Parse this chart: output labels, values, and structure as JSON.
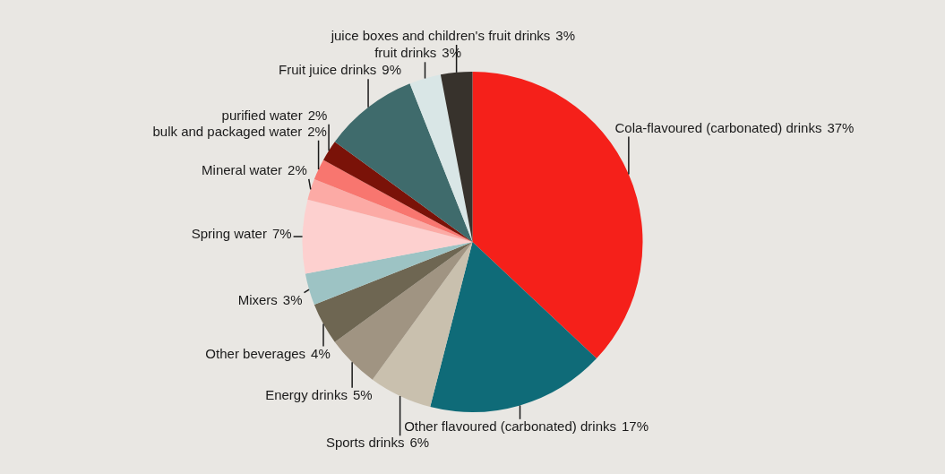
{
  "chart_data": {
    "type": "pie",
    "categories": [
      "Cola-flavoured (carbonated) drinks",
      "Other flavoured (carbonated) drinks",
      "Sports drinks",
      "Energy drinks",
      "Other beverages",
      "Mixers",
      "Spring water",
      "Mineral water",
      "bulk and packaged water",
      "purified water",
      "Fruit juice drinks",
      "fruit drinks",
      "juice boxes and children's fruit drinks"
    ],
    "values": [
      37,
      17,
      6,
      5,
      4,
      3,
      7,
      2,
      2,
      2,
      9,
      3,
      3
    ],
    "colors": [
      "#f5201a",
      "#0f6b78",
      "#c9c0ae",
      "#a09482",
      "#6e6652",
      "#9dc3c4",
      "#fdd0cf",
      "#fcaaa5",
      "#f8766f",
      "#7a1208",
      "#3f6b6c",
      "#d9e6e6",
      "#37322c"
    ],
    "value_labels": [
      "37%",
      "17%",
      "6%",
      "5%",
      "4%",
      "3%",
      "7%",
      "2%",
      "2%",
      "2%",
      "9%",
      "3%",
      "3%"
    ],
    "legend": false
  }
}
